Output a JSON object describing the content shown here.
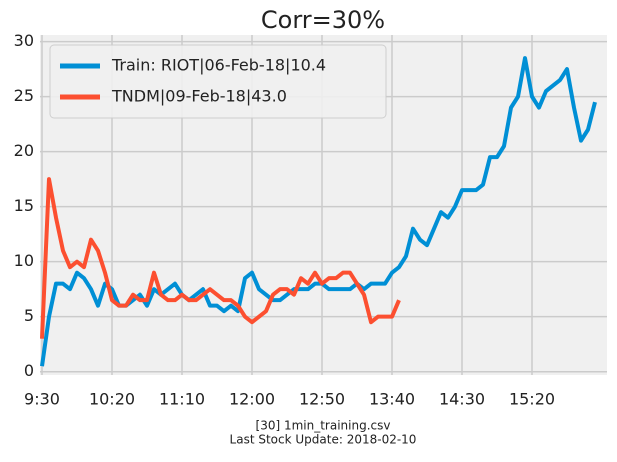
{
  "chart_data": {
    "type": "line",
    "title": "Corr=30%",
    "footer": [
      "[30] 1min_training.csv",
      "Last Stock Update: 2018-02-10"
    ],
    "x": [
      "9:30",
      "9:35",
      "9:40",
      "9:45",
      "9:50",
      "9:55",
      "10:00",
      "10:05",
      "10:10",
      "10:15",
      "10:20",
      "10:25",
      "10:30",
      "10:35",
      "10:40",
      "10:45",
      "10:50",
      "10:55",
      "11:00",
      "11:05",
      "11:10",
      "11:15",
      "11:20",
      "11:25",
      "11:30",
      "11:35",
      "11:40",
      "11:45",
      "11:50",
      "11:55",
      "12:00",
      "12:05",
      "12:10",
      "12:15",
      "12:20",
      "12:25",
      "12:30",
      "12:35",
      "12:40",
      "12:45",
      "12:50",
      "12:55",
      "13:00",
      "13:05",
      "13:10",
      "13:15",
      "13:20",
      "13:25",
      "13:30",
      "13:35",
      "13:40",
      "13:45",
      "13:50",
      "13:55",
      "14:00",
      "14:05",
      "14:10",
      "14:15",
      "14:20",
      "14:25",
      "14:30",
      "14:35",
      "14:40",
      "14:45",
      "14:50",
      "14:55",
      "15:00",
      "15:05",
      "15:10",
      "15:15",
      "15:20",
      "15:25",
      "15:30",
      "15:35",
      "15:40",
      "15:45",
      "15:50",
      "15:55",
      "16:00",
      "16:05"
    ],
    "series": [
      {
        "name": "Train: RIOT|06-Feb-18|10.4",
        "color": "#008fd5",
        "values": [
          0.5,
          5,
          8,
          8,
          7.5,
          9,
          8.5,
          7.5,
          6,
          8,
          7.5,
          6,
          6,
          6.5,
          7,
          6,
          7.5,
          7,
          7.5,
          8,
          7,
          6.5,
          7,
          7.5,
          6,
          6,
          5.5,
          6,
          5.5,
          8.5,
          9,
          7.5,
          7,
          6.5,
          6.5,
          7,
          7.5,
          7.5,
          7.5,
          8,
          8,
          7.5,
          7.5,
          7.5,
          7.5,
          8,
          7.5,
          8,
          8,
          8,
          9,
          9.5,
          10.5,
          13,
          12,
          11.5,
          13,
          14.5,
          14,
          15,
          16.5,
          16.5,
          16.5,
          17,
          19.5,
          19.5,
          20.5,
          24,
          25,
          28.5,
          25,
          24,
          25.5,
          26,
          26.5,
          27.5,
          24,
          21,
          22,
          24.5
        ]
      },
      {
        "name": "TNDM|09-Feb-18|43.0",
        "color": "#fc4f30",
        "values": [
          3,
          17.5,
          14,
          11,
          9.5,
          10,
          9.5,
          12,
          11,
          9,
          6.5,
          6,
          6,
          7,
          6.5,
          6.5,
          9,
          7,
          6.5,
          6.5,
          7,
          6.5,
          6.5,
          7,
          7.5,
          7,
          6.5,
          6.5,
          6,
          5,
          4.5,
          5,
          5.5,
          7,
          7.5,
          7.5,
          7,
          8.5,
          8,
          9,
          8,
          8.5,
          8.5,
          9,
          9,
          8,
          7,
          4.5,
          5,
          5,
          5,
          6.5,
          null,
          null,
          null,
          null,
          null,
          null,
          null,
          null,
          null,
          null,
          null,
          null,
          null,
          null,
          null,
          null,
          null,
          null,
          null,
          null,
          null,
          null,
          null,
          null,
          null,
          null,
          null,
          null
        ]
      }
    ],
    "xticks": [
      "9:30",
      "10:20",
      "11:10",
      "12:00",
      "12:50",
      "13:40",
      "14:30",
      "15:20"
    ],
    "ylim": [
      -0.3,
      30.6
    ],
    "yticks": [
      0,
      5,
      10,
      15,
      20,
      25,
      30
    ],
    "grid": true,
    "legend": "upper left"
  }
}
